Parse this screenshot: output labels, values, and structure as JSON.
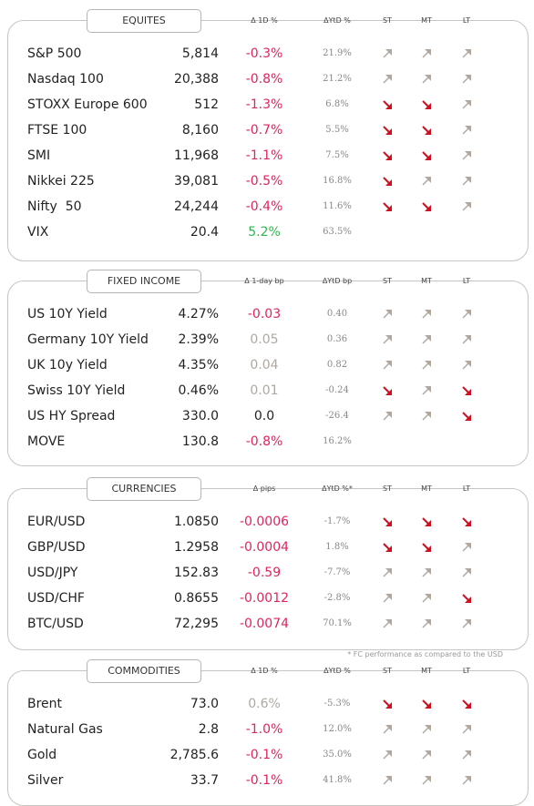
{
  "sections": [
    {
      "title": "EQUITES",
      "headers": [
        "Δ 1D %",
        "ΔYtD %",
        "ST",
        "MT",
        "LT"
      ],
      "rows": [
        {
          "name": "S&P 500",
          "value": "5,814",
          "change": "-0.3%",
          "change_color": "#e0245e",
          "ytd": "21.9%",
          "trend": [
            "up",
            "up",
            "up"
          ]
        },
        {
          "name": "Nasdaq 100",
          "value": "20,388",
          "change": "-0.8%",
          "change_color": "#e0245e",
          "ytd": "21.2%",
          "trend": [
            "up",
            "up",
            "up"
          ]
        },
        {
          "name": "STOXX Europe 600",
          "value": "512",
          "change": "-1.3%",
          "change_color": "#e0245e",
          "ytd": "6.8%",
          "trend": [
            "down",
            "down",
            "up"
          ]
        },
        {
          "name": "FTSE 100",
          "value": "8,160",
          "change": "-0.7%",
          "change_color": "#e0245e",
          "ytd": "5.5%",
          "trend": [
            "down",
            "down",
            "up"
          ]
        },
        {
          "name": "SMI",
          "value": "11,968",
          "change": "-1.1%",
          "change_color": "#e0245e",
          "ytd": "7.5%",
          "trend": [
            "down",
            "down",
            "up"
          ]
        },
        {
          "name": "Nikkei 225",
          "value": "39,081",
          "change": "-0.5%",
          "change_color": "#e0245e",
          "ytd": "16.8%",
          "trend": [
            "down",
            "up",
            "up"
          ]
        },
        {
          "name": "Nifty  50",
          "value": "24,244",
          "change": "-0.4%",
          "change_color": "#e0245e",
          "ytd": "11.6%",
          "trend": [
            "down",
            "down",
            "up"
          ]
        },
        {
          "name": "VIX",
          "value": "20.4",
          "change": "5.2%",
          "change_color": "#2db84d",
          "ytd": "63.5%",
          "trend": []
        }
      ]
    },
    {
      "title": "FIXED INCOME",
      "headers": [
        "Δ 1-day bp",
        "ΔYtD bp",
        "ST",
        "MT",
        "LT"
      ],
      "rows": [
        {
          "name": "US 10Y Yield",
          "value": "4.27%",
          "change": "-0.03",
          "change_color": "#e0245e",
          "ytd": "0.40",
          "trend": [
            "up",
            "up",
            "up"
          ]
        },
        {
          "name": "Germany 10Y Yield",
          "value": "2.39%",
          "change": "0.05",
          "change_color": "#b0a8a0",
          "ytd": "0.36",
          "trend": [
            "up",
            "up",
            "up"
          ]
        },
        {
          "name": "UK 10y Yield",
          "value": "4.35%",
          "change": "0.04",
          "change_color": "#b0a8a0",
          "ytd": "0.82",
          "trend": [
            "up",
            "up",
            "up"
          ]
        },
        {
          "name": "Swiss 10Y Yield",
          "value": "0.46%",
          "change": "0.01",
          "change_color": "#b0a8a0",
          "ytd": "-0.24",
          "trend": [
            "down",
            "up",
            "down"
          ]
        },
        {
          "name": "US HY Spread",
          "value": "330.0",
          "change": "0.0",
          "change_color": "#222222",
          "ytd": "-26.4",
          "trend": [
            "up",
            "up",
            "down"
          ]
        },
        {
          "name": "MOVE",
          "value": "130.8",
          "change": "-0.8%",
          "change_color": "#e0245e",
          "ytd": "16.2%",
          "trend": []
        }
      ]
    },
    {
      "title": "CURRENCIES",
      "headers": [
        "Δ pips",
        "ΔYtD %*",
        "ST",
        "MT",
        "LT"
      ],
      "rows": [
        {
          "name": "EUR/USD",
          "value": "1.0850",
          "change": "-0.0006",
          "change_color": "#e0245e",
          "ytd": "-1.7%",
          "trend": [
            "down",
            "down",
            "down"
          ]
        },
        {
          "name": "GBP/USD",
          "value": "1.2958",
          "change": "-0.0004",
          "change_color": "#e0245e",
          "ytd": "1.8%",
          "trend": [
            "down",
            "down",
            "up"
          ]
        },
        {
          "name": "USD/JPY",
          "value": "152.83",
          "change": "-0.59",
          "change_color": "#e0245e",
          "ytd": "-7.7%",
          "trend": [
            "up",
            "up",
            "up"
          ]
        },
        {
          "name": "USD/CHF",
          "value": "0.8655",
          "change": "-0.0012",
          "change_color": "#e0245e",
          "ytd": "-2.8%",
          "trend": [
            "up",
            "up",
            "down"
          ]
        },
        {
          "name": "BTC/USD",
          "value": "72,295",
          "change": "-0.0074",
          "change_color": "#e0245e",
          "ytd": "70.1%",
          "trend": [
            "up",
            "up",
            "up"
          ]
        }
      ]
    },
    {
      "title": "COMMODITIES",
      "headers": [
        "Δ 1D %",
        "ΔYtD %",
        "ST",
        "MT",
        "LT"
      ],
      "rows": [
        {
          "name": "Brent",
          "value": "73.0",
          "change": "0.6%",
          "change_color": "#b0a8a0",
          "ytd": "-5.3%",
          "trend": [
            "down",
            "down",
            "down"
          ]
        },
        {
          "name": "Natural Gas",
          "value": "2.8",
          "change": "-1.0%",
          "change_color": "#e0245e",
          "ytd": "12.0%",
          "trend": [
            "up",
            "up",
            "up"
          ]
        },
        {
          "name": "Gold",
          "value": "2,785.6",
          "change": "-0.1%",
          "change_color": "#e0245e",
          "ytd": "35.0%",
          "trend": [
            "up",
            "up",
            "up"
          ]
        },
        {
          "name": "Silver",
          "value": "33.7",
          "change": "-0.1%",
          "change_color": "#e0245e",
          "ytd": "41.8%",
          "trend": [
            "up",
            "up",
            "up"
          ]
        }
      ]
    }
  ],
  "footnote": "* FC performance as compared to the USD"
}
